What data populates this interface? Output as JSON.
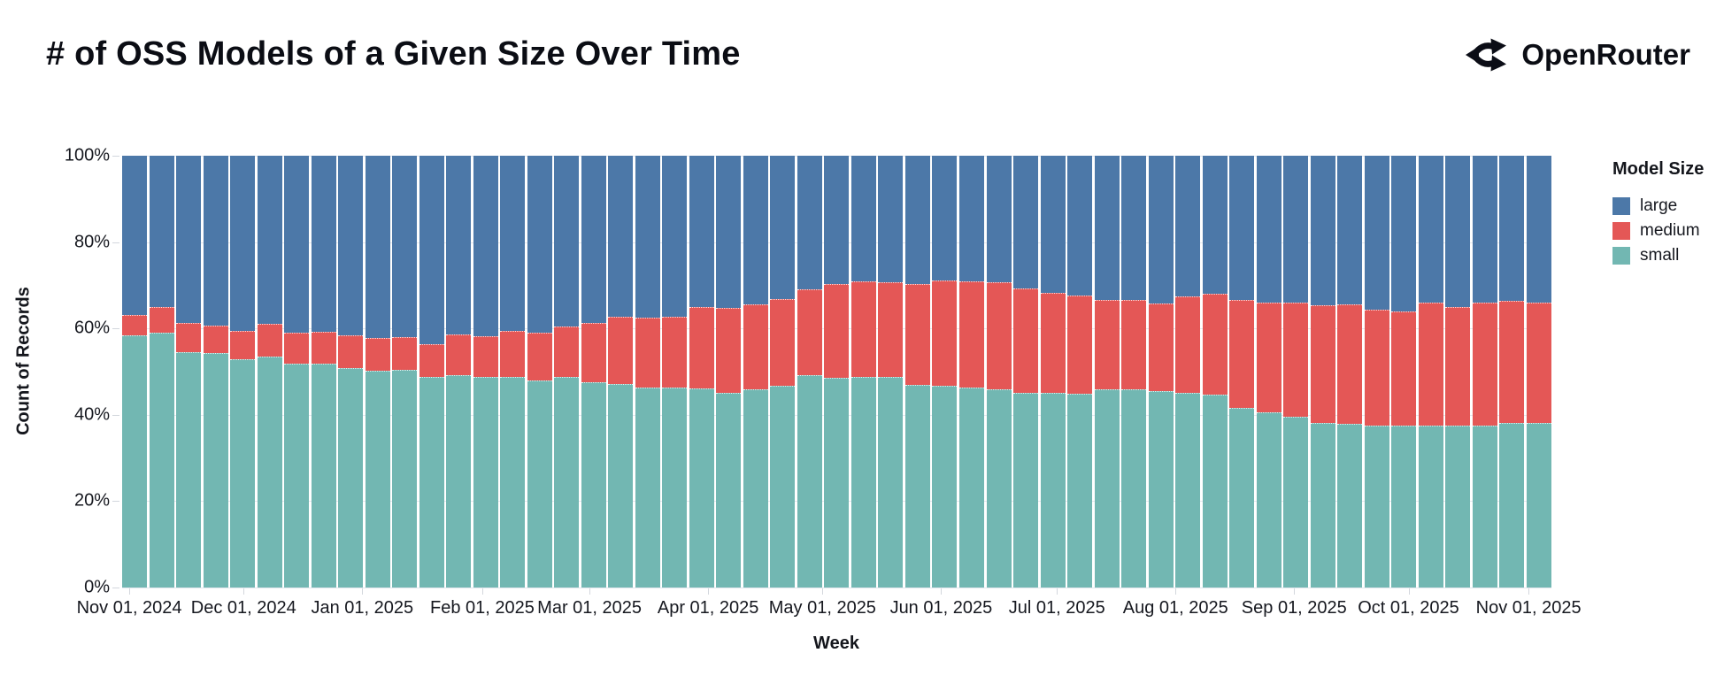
{
  "page": {
    "title": "# of OSS Models of a Given Size Over Time",
    "brand": "OpenRouter"
  },
  "chart_data": {
    "type": "bar",
    "stacked": "normalize",
    "title": "# of OSS Models of a Given Size Over Time",
    "xlabel": "Week",
    "ylabel": "Count of Records",
    "ylim": [
      0,
      100
    ],
    "grid": true,
    "legend_position": "right",
    "y_tick_labels": [
      "0%",
      "20%",
      "40%",
      "60%",
      "80%",
      "100%"
    ],
    "x_tick_labels": [
      "Nov 01, 2024",
      "Dec 01, 2024",
      "Jan 01, 2025",
      "Feb 01, 2025",
      "Mar 01, 2025",
      "Apr 01, 2025",
      "May 01, 2025",
      "Jun 01, 2025",
      "Jul 01, 2025",
      "Aug 01, 2025",
      "Sep 01, 2025",
      "Oct 01, 2025",
      "Nov 01, 2025"
    ],
    "legend": {
      "title": "Model Size",
      "items": [
        {
          "label": "large",
          "color": "#4c78a8"
        },
        {
          "label": "medium",
          "color": "#e45756"
        },
        {
          "label": "small",
          "color": "#72b7b2"
        }
      ]
    },
    "categories": [
      "2024-10-27",
      "2024-11-03",
      "2024-11-10",
      "2024-11-17",
      "2024-11-24",
      "2024-12-01",
      "2024-12-08",
      "2024-12-15",
      "2024-12-22",
      "2024-12-29",
      "2025-01-05",
      "2025-01-12",
      "2025-01-19",
      "2025-01-26",
      "2025-02-02",
      "2025-02-09",
      "2025-02-16",
      "2025-02-23",
      "2025-03-02",
      "2025-03-09",
      "2025-03-16",
      "2025-03-23",
      "2025-03-30",
      "2025-04-06",
      "2025-04-13",
      "2025-04-20",
      "2025-04-27",
      "2025-05-04",
      "2025-05-11",
      "2025-05-18",
      "2025-05-25",
      "2025-06-01",
      "2025-06-08",
      "2025-06-15",
      "2025-06-22",
      "2025-06-29",
      "2025-07-06",
      "2025-07-13",
      "2025-07-20",
      "2025-07-27",
      "2025-08-03",
      "2025-08-10",
      "2025-08-17",
      "2025-08-24",
      "2025-08-31",
      "2025-09-07",
      "2025-09-14",
      "2025-09-21",
      "2025-09-28",
      "2025-10-05",
      "2025-10-12",
      "2025-10-19",
      "2025-10-26"
    ],
    "series": [
      {
        "name": "small",
        "color": "#72b7b2",
        "values": [
          58.4,
          59.1,
          54.5,
          54.2,
          52.9,
          53.5,
          51.9,
          51.9,
          50.9,
          50.2,
          50.5,
          48.8,
          49.2,
          48.8,
          48.8,
          48.0,
          48.8,
          47.5,
          47.1,
          46.4,
          46.3,
          46.1,
          45.1,
          45.8,
          46.8,
          49.2,
          48.5,
          48.8,
          48.8,
          46.9,
          46.8,
          46.4,
          45.8,
          45.1,
          45.1,
          44.9,
          45.9,
          45.9,
          45.4,
          45.1,
          44.6,
          41.7,
          40.6,
          39.6,
          38.2,
          38.0,
          37.4,
          37.4,
          37.4,
          37.4,
          37.4,
          38.2,
          38.2
        ]
      },
      {
        "name": "medium",
        "color": "#e45756",
        "values": [
          4.8,
          5.8,
          6.8,
          6.4,
          6.5,
          7.6,
          7.2,
          7.3,
          7.5,
          7.5,
          7.4,
          7.5,
          9.5,
          9.3,
          10.6,
          11.1,
          11.7,
          13.8,
          15.7,
          16.1,
          16.5,
          18.8,
          19.7,
          19.8,
          20.1,
          19.8,
          21.8,
          22.2,
          21.9,
          23.3,
          24.4,
          24.4,
          24.9,
          24.2,
          23.2,
          22.7,
          20.8,
          20.8,
          20.3,
          22.3,
          23.4,
          25.0,
          25.3,
          26.3,
          27.2,
          27.6,
          27.0,
          26.6,
          28.5,
          27.5,
          28.5,
          28.1,
          27.8
        ]
      },
      {
        "name": "large",
        "color": "#4c78a8",
        "values": [
          36.8,
          35.1,
          38.7,
          39.4,
          40.6,
          38.9,
          40.9,
          40.8,
          41.6,
          42.3,
          42.1,
          43.7,
          41.3,
          41.9,
          40.6,
          40.9,
          39.5,
          38.7,
          37.2,
          37.5,
          37.2,
          35.1,
          35.2,
          34.4,
          33.1,
          31.0,
          29.7,
          29.0,
          29.3,
          29.8,
          28.8,
          29.2,
          29.3,
          30.7,
          31.7,
          32.4,
          33.3,
          33.3,
          34.3,
          32.6,
          32.0,
          33.3,
          34.1,
          34.1,
          34.6,
          34.4,
          35.6,
          36.0,
          34.1,
          35.1,
          34.1,
          33.7,
          34.0
        ]
      }
    ]
  }
}
